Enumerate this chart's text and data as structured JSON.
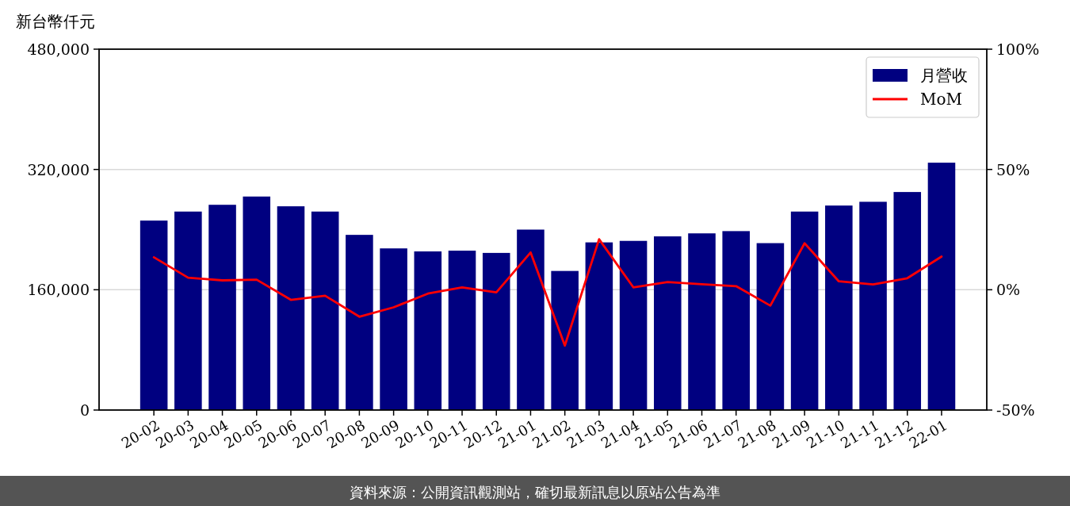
{
  "chart_data": {
    "type": "bar",
    "ylabel": "新台幣仟元",
    "categories": [
      "20-02",
      "20-03",
      "20-04",
      "20-05",
      "20-06",
      "20-07",
      "20-08",
      "20-09",
      "20-10",
      "20-11",
      "20-12",
      "21-01",
      "21-02",
      "21-03",
      "21-04",
      "21-05",
      "21-06",
      "21-07",
      "21-08",
      "21-09",
      "21-10",
      "21-11",
      "21-12",
      "22-01"
    ],
    "series": [
      {
        "name": "月營收",
        "color": "#000080",
        "values": [
          252000,
          264000,
          273000,
          284000,
          271000,
          264000,
          233000,
          215000,
          211000,
          212000,
          209000,
          240000,
          185000,
          223000,
          225000,
          231000,
          235000,
          238000,
          222000,
          264000,
          272000,
          277000,
          290000,
          329000
        ]
      },
      {
        "name": "MoM",
        "type": "line",
        "axis": "y2",
        "color": "#ff0000",
        "values": [
          13.5,
          5.0,
          3.9,
          4.2,
          -4.2,
          -2.5,
          -11.2,
          -7.3,
          -1.6,
          1.0,
          -1.1,
          15.5,
          -23.2,
          21.0,
          1.0,
          3.2,
          2.3,
          1.5,
          -6.6,
          19.3,
          3.5,
          2.2,
          4.8,
          13.8
        ]
      }
    ],
    "ylim": [
      0,
      480000
    ],
    "yticks": [
      0,
      {
        "value": 160000,
        "label": "160,000"
      },
      {
        "value": 320000,
        "label": "320,000"
      },
      {
        "value": 480000,
        "label": "480,000"
      }
    ],
    "y2lim": [
      -50,
      100
    ],
    "y2ticks": [
      {
        "value": -50,
        "label": "-50%"
      },
      {
        "value": 0,
        "label": "0%"
      },
      {
        "value": 50,
        "label": "50%"
      },
      {
        "value": 100,
        "label": "100%"
      }
    ],
    "grid": "y",
    "legend": "top right",
    "annotations": [
      "資料來源：公開資訊觀測站，確切最新訊息以原站公告為準"
    ]
  }
}
